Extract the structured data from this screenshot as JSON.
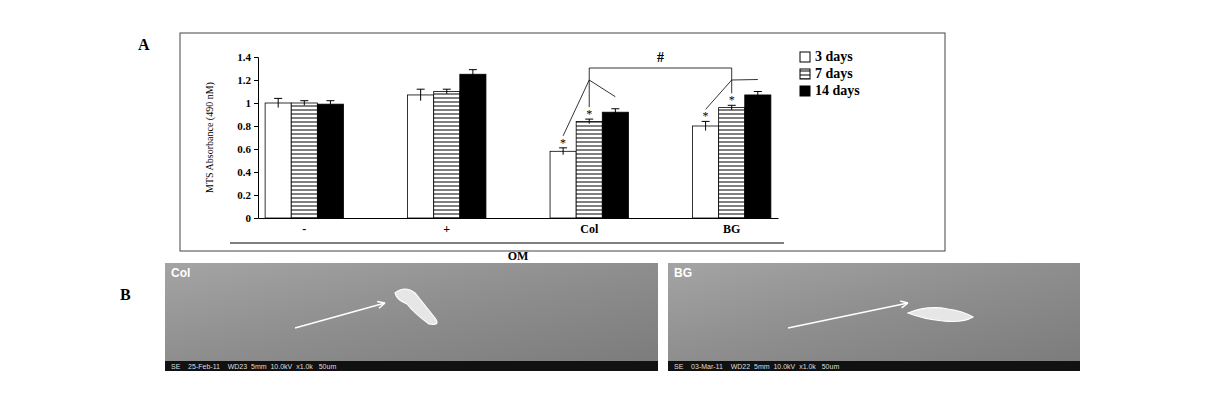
{
  "chart_data": {
    "type": "bar",
    "y_label": "MTS Absorbance (490 nM)",
    "group_label": "OM",
    "categories": [
      "-",
      "+",
      "Col",
      "BG"
    ],
    "series": [
      {
        "name": "3 days",
        "color": "#ffffff",
        "values": [
          1.0,
          1.07,
          0.58,
          0.8
        ],
        "errors": [
          0.04,
          0.05,
          0.03,
          0.04
        ]
      },
      {
        "name": "7 days",
        "color": "#ffffff",
        "marker": "hatch",
        "values": [
          1.0,
          1.1,
          0.84,
          0.96
        ],
        "errors": [
          0.02,
          0.02,
          0.02,
          0.02
        ]
      },
      {
        "name": "14 days",
        "color": "#000000",
        "values": [
          0.99,
          1.25,
          0.92,
          1.07
        ],
        "errors": [
          0.03,
          0.04,
          0.03,
          0.03
        ]
      }
    ],
    "ylim": [
      0,
      1.4
    ],
    "yticks": [
      0,
      0.2,
      0.4,
      0.6,
      0.8,
      1,
      1.2,
      1.4
    ],
    "legend": "right",
    "annotations": [
      {
        "text": "*",
        "series": 0,
        "category": 2
      },
      {
        "text": "*",
        "series": 1,
        "category": 2
      },
      {
        "text": "*",
        "series": 0,
        "category": 3
      },
      {
        "text": "*",
        "series": 1,
        "category": 3
      }
    ],
    "bracket": {
      "text": "#",
      "categories": [
        2,
        3
      ]
    }
  },
  "panel_labels": [
    "A",
    "B"
  ],
  "images": [
    {
      "label": "Col",
      "footer": "SE    25-Feb-11    WD23  5mm  10.0kV  x1.0k   50um"
    },
    {
      "label": "BG",
      "footer": "SE    03-Mar-11    WD22  5mm  10.0kV  x1.0k   50um"
    }
  ]
}
